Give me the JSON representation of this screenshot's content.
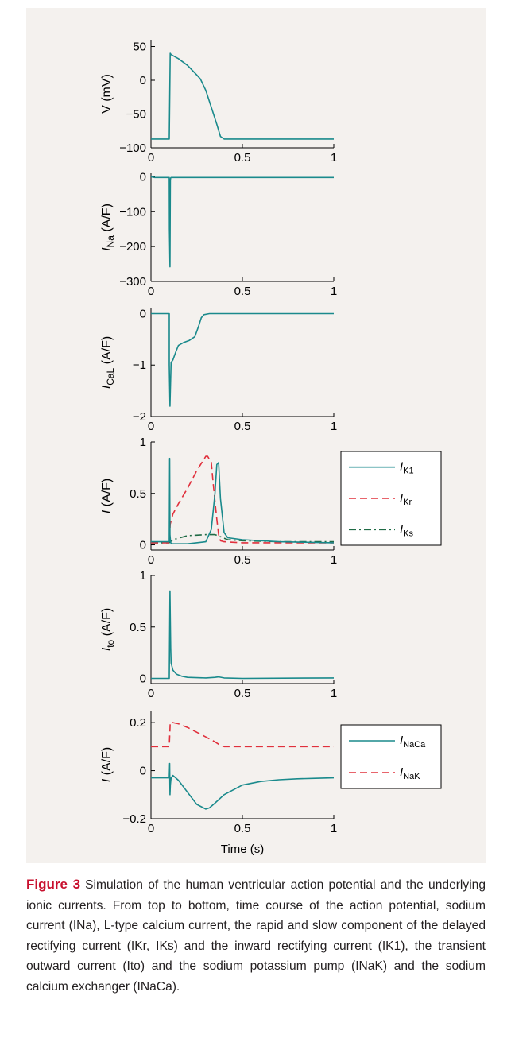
{
  "colors": {
    "panel_bg": "#f4f1ee",
    "teal": "#1a8a8c",
    "red": "#e0303c",
    "darkgreen": "#1f6b45",
    "caption_label": "#c8102e"
  },
  "caption": {
    "label": "Figure 3",
    "text": "Simulation of the human ventricular action potential and the underlying ionic currents. From top to bottom, time course of the action potential, sodium current (INa), L-type calcium current, the rapid and slow component of the delayed rectifying current (IKr, IKs) and the inward rectifying current (IK1), the transient outward current (Ito) and the sodium potassium pump (INaK) and the sodium calcium exchanger (INaCa)."
  },
  "chart_data": [
    {
      "type": "line",
      "ylabel": "V (mV)",
      "xlim": [
        0,
        1
      ],
      "ylim": [
        -100,
        60
      ],
      "xticks": [
        0,
        0.5,
        1
      ],
      "xtick_labels": [
        "0",
        "0.5",
        "1"
      ],
      "yticks": [
        50,
        0,
        -50,
        -100
      ],
      "ytick_labels": [
        "50",
        "0",
        "−50",
        "−100"
      ],
      "series": [
        {
          "color": "teal",
          "dash": "solid",
          "x": [
            0,
            0.1,
            0.105,
            0.11,
            0.15,
            0.2,
            0.25,
            0.27,
            0.3,
            0.33,
            0.36,
            0.38,
            0.4,
            0.5,
            1.0
          ],
          "y": [
            -87,
            -87,
            40,
            38,
            32,
            22,
            8,
            2,
            -15,
            -40,
            -65,
            -83,
            -87,
            -87,
            -87
          ]
        }
      ]
    },
    {
      "type": "line",
      "ylabel": "INa (A/F)",
      "xlim": [
        0,
        1
      ],
      "ylim": [
        -300,
        10
      ],
      "xticks": [
        0,
        0.5,
        1
      ],
      "xtick_labels": [
        "0",
        "0.5",
        "1"
      ],
      "yticks": [
        0,
        -100,
        -200,
        -300
      ],
      "ytick_labels": [
        "0",
        "−100",
        "−200",
        "−300"
      ],
      "series": [
        {
          "color": "teal",
          "dash": "solid",
          "x": [
            0,
            0.01,
            0.02,
            0.1,
            0.101,
            0.104,
            0.106,
            0.108,
            0.11,
            0.5,
            1.0
          ],
          "y": [
            0,
            -1,
            -2,
            -2,
            -150,
            -258,
            -10,
            -3,
            -2,
            -2,
            -2
          ]
        }
      ]
    },
    {
      "type": "line",
      "ylabel": "ICaL (A/F)",
      "xlim": [
        0,
        1
      ],
      "ylim": [
        -2,
        0.1
      ],
      "xticks": [
        0,
        0.5,
        1
      ],
      "xtick_labels": [
        "0",
        "0.5",
        "1"
      ],
      "yticks": [
        0,
        -1,
        -2
      ],
      "ytick_labels": [
        "0",
        "−1",
        "−2"
      ],
      "series": [
        {
          "color": "teal",
          "dash": "solid",
          "x": [
            0,
            0.1,
            0.1,
            0.104,
            0.11,
            0.12,
            0.135,
            0.15,
            0.18,
            0.21,
            0.24,
            0.26,
            0.275,
            0.29,
            0.32,
            0.4,
            1.0
          ],
          "y": [
            0,
            0,
            -1.0,
            -1.8,
            -0.95,
            -0.9,
            -0.75,
            -0.62,
            -0.56,
            -0.52,
            -0.45,
            -0.25,
            -0.08,
            -0.02,
            0,
            0,
            0
          ]
        }
      ]
    },
    {
      "type": "line",
      "ylabel": "I (A/F)",
      "xlim": [
        0,
        1
      ],
      "ylim": [
        -0.05,
        1
      ],
      "xticks": [
        0,
        0.5,
        1
      ],
      "xtick_labels": [
        "0",
        "0.5",
        "1"
      ],
      "yticks": [
        1,
        0.5,
        0
      ],
      "ytick_labels": [
        "1",
        "0.5",
        "0"
      ],
      "legend": {
        "placement": "right"
      },
      "series": [
        {
          "name": "IK1",
          "color": "teal",
          "dash": "solid",
          "x": [
            0,
            0.1,
            0.102,
            0.104,
            0.108,
            0.115,
            0.2,
            0.3,
            0.33,
            0.35,
            0.36,
            0.37,
            0.38,
            0.4,
            0.42,
            0.5,
            0.7,
            1.0
          ],
          "y": [
            0.03,
            0.03,
            0.84,
            0.1,
            0.02,
            0.01,
            0.01,
            0.03,
            0.15,
            0.5,
            0.78,
            0.8,
            0.45,
            0.12,
            0.07,
            0.05,
            0.03,
            0.02
          ]
        },
        {
          "name": "IKr",
          "color": "red",
          "dash": "dashed",
          "x": [
            0,
            0.1,
            0.105,
            0.12,
            0.15,
            0.2,
            0.25,
            0.3,
            0.31,
            0.33,
            0.34,
            0.36,
            0.37,
            0.38,
            0.4,
            0.5,
            1.0
          ],
          "y": [
            0.02,
            0.02,
            0.2,
            0.3,
            0.4,
            0.55,
            0.72,
            0.86,
            0.86,
            0.8,
            0.6,
            0.25,
            0.1,
            0.04,
            0.03,
            0.02,
            0.02
          ]
        },
        {
          "name": "IKs",
          "color": "darkgreen",
          "dash": "dashdot",
          "x": [
            0,
            0.1,
            0.12,
            0.2,
            0.3,
            0.35,
            0.38,
            0.42,
            0.5,
            0.7,
            1.0
          ],
          "y": [
            0.02,
            0.02,
            0.05,
            0.09,
            0.1,
            0.1,
            0.08,
            0.05,
            0.04,
            0.03,
            0.03
          ]
        }
      ]
    },
    {
      "type": "line",
      "ylabel": "Ito (A/F)",
      "xlim": [
        0,
        1
      ],
      "ylim": [
        -0.05,
        1
      ],
      "xticks": [
        0,
        0.5,
        1
      ],
      "xtick_labels": [
        "0",
        "0.5",
        "1"
      ],
      "yticks": [
        1,
        0.5,
        0
      ],
      "ytick_labels": [
        "1",
        "0.5",
        "0"
      ],
      "series": [
        {
          "color": "teal",
          "dash": "solid",
          "x": [
            0,
            0.1,
            0.104,
            0.108,
            0.11,
            0.12,
            0.14,
            0.17,
            0.2,
            0.3,
            0.35,
            0.37,
            0.4,
            0.5,
            1.0
          ],
          "y": [
            0,
            0,
            0.85,
            0.3,
            0.15,
            0.08,
            0.04,
            0.02,
            0.01,
            0.005,
            0.01,
            0.015,
            0.005,
            0,
            0.005
          ]
        }
      ]
    },
    {
      "type": "line",
      "ylabel": "I (A/F)",
      "xlabel": "Time (s)",
      "xlim": [
        0,
        1
      ],
      "ylim": [
        -0.2,
        0.25
      ],
      "xticks": [
        0,
        0.5,
        1
      ],
      "xtick_labels": [
        "0",
        "0.5",
        "1"
      ],
      "yticks": [
        0.2,
        0,
        -0.2
      ],
      "ytick_labels": [
        "0.2",
        "0",
        "−0.2"
      ],
      "legend": {
        "placement": "right"
      },
      "series": [
        {
          "name": "INaCa",
          "color": "teal",
          "dash": "solid",
          "x": [
            0,
            0.1,
            0.102,
            0.104,
            0.106,
            0.11,
            0.12,
            0.15,
            0.2,
            0.25,
            0.3,
            0.32,
            0.35,
            0.4,
            0.5,
            0.6,
            0.7,
            0.8,
            0.9,
            1.0
          ],
          "y": [
            -0.03,
            -0.03,
            0.03,
            -0.1,
            -0.06,
            -0.03,
            -0.02,
            -0.04,
            -0.09,
            -0.14,
            -0.16,
            -0.155,
            -0.135,
            -0.1,
            -0.06,
            -0.045,
            -0.038,
            -0.034,
            -0.032,
            -0.03
          ]
        },
        {
          "name": "INaK",
          "color": "red",
          "dash": "dashed",
          "x": [
            0,
            0.1,
            0.105,
            0.12,
            0.15,
            0.2,
            0.25,
            0.3,
            0.35,
            0.38,
            0.4,
            0.5,
            1.0
          ],
          "y": [
            0.1,
            0.1,
            0.2,
            0.2,
            0.195,
            0.18,
            0.16,
            0.14,
            0.12,
            0.105,
            0.1,
            0.1,
            0.1
          ]
        }
      ]
    }
  ]
}
